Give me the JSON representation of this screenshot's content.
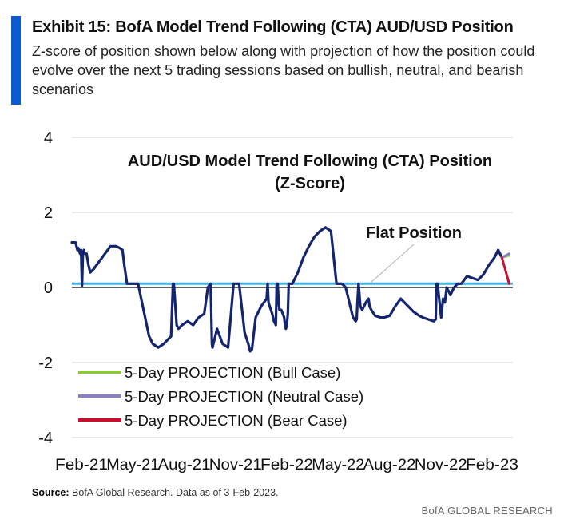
{
  "header": {
    "title": "Exhibit 15: BofA Model Trend Following (CTA) AUD/USD Position",
    "subtitle": "Z-score of position shown below along with projection of how the position could evolve over the next 5 trading sessions based on bullish, neutral, and bearish scenarios"
  },
  "footer": {
    "source_label": "Source:",
    "source_text": "BofA Global Research.  Data as of 3-Feb-2023.",
    "brand": "BofA GLOBAL RESEARCH"
  },
  "colors": {
    "accent": "#0a5bd1",
    "series_main": "#13256e",
    "flat_line": "#41b6e6",
    "bull": "#8dc63f",
    "neutral": "#8a7fc0",
    "bear": "#c8102e"
  },
  "chart_data": {
    "type": "line",
    "title_line1": "AUD/USD Model Trend Following (CTA) Position",
    "title_line2": "(Z-Score)",
    "ylim": [
      -4,
      4
    ],
    "yticks": [
      4,
      2,
      0,
      -2,
      -4
    ],
    "xlabels": [
      "Feb-21",
      "May-21",
      "Aug-21",
      "Nov-21",
      "Feb-22",
      "May-22",
      "Aug-22",
      "Nov-22",
      "Feb-23"
    ],
    "xlim": [
      0,
      24
    ],
    "grid": false,
    "flat_position": {
      "label": "Flat Position",
      "value": 0.1
    },
    "legend": [
      {
        "label": "5-Day PROJECTION (Bull Case)",
        "color_key": "bull"
      },
      {
        "label": "5-Day PROJECTION (Neutral Case)",
        "color_key": "neutral"
      },
      {
        "label": "5-Day PROJECTION (Bear Case)",
        "color_key": "bear"
      }
    ],
    "series": [
      {
        "x": [
          0,
          0.2,
          0.3,
          0.35,
          0.45,
          0.5,
          0.55,
          0.6,
          0.65,
          0.7,
          0.8,
          0.9,
          1.0,
          1.2,
          1.5,
          1.8,
          2.1,
          2.4,
          2.6,
          2.75,
          2.85,
          3.0,
          3.3,
          3.6,
          3.9,
          4.2,
          4.4,
          4.7,
          5.0,
          5.2,
          5.4,
          5.5,
          5.55,
          5.7,
          5.8,
          6.0,
          6.3,
          6.6,
          6.9,
          7.2,
          7.4,
          7.55,
          7.58,
          7.62,
          7.65,
          7.9,
          8.2,
          8.5,
          8.8,
          9.1,
          9.4,
          9.6,
          9.65,
          9.7,
          9.8,
          10.0,
          10.3,
          10.6,
          10.65,
          10.7,
          10.9,
          11.0,
          11.1,
          11.15,
          11.2,
          11.25,
          11.3,
          11.4,
          11.55,
          11.6,
          11.65,
          11.7,
          11.75,
          11.8,
          12.0,
          12.3,
          12.6,
          12.9,
          13.2,
          13.5,
          13.8,
          14.1,
          14.4,
          14.7,
          14.9,
          15.1,
          15.3,
          15.45,
          15.5,
          15.55,
          15.6,
          15.7,
          15.8,
          16.0,
          16.15,
          16.2,
          16.3,
          16.5,
          16.8,
          17.0,
          17.3,
          17.6,
          17.9,
          18.0,
          18.3,
          18.6,
          18.9,
          19.1,
          19.4,
          19.7,
          19.8,
          19.85,
          19.9,
          20.1,
          20.2,
          20.3,
          20.4,
          20.6,
          20.8,
          21.0,
          21.2,
          21.5,
          21.8,
          22.1,
          22.4,
          22.7,
          23.0,
          23.2,
          23.4
        ],
        "y": [
          1.2,
          1.2,
          1.0,
          1.05,
          0.9,
          1.0,
          0.05,
          0.9,
          1.0,
          0.9,
          0.9,
          0.6,
          0.4,
          0.5,
          0.7,
          0.9,
          1.1,
          1.1,
          1.05,
          1.0,
          0.6,
          0.1,
          0.1,
          0.1,
          -0.6,
          -1.3,
          -1.5,
          -1.6,
          -1.5,
          -1.4,
          -1.3,
          0.1,
          0.1,
          -1.0,
          -1.1,
          -1.0,
          -0.9,
          -1.0,
          -0.8,
          -0.7,
          0.0,
          0.1,
          -0.5,
          -1.5,
          -1.6,
          -1.1,
          -1.5,
          -1.6,
          0.1,
          0.1,
          -1.2,
          -1.5,
          -1.6,
          -1.7,
          -1.65,
          -0.8,
          -0.5,
          -0.3,
          0.1,
          -0.4,
          -0.7,
          -0.9,
          -1.0,
          0.1,
          0.1,
          -0.4,
          -0.6,
          -0.6,
          -0.8,
          -1.0,
          -1.1,
          -1.0,
          -0.7,
          0.1,
          0.1,
          0.4,
          0.8,
          1.1,
          1.35,
          1.5,
          1.6,
          1.5,
          0.1,
          0.1,
          0.0,
          -0.4,
          -0.8,
          -0.9,
          -0.85,
          -0.3,
          0.1,
          -0.5,
          -0.6,
          -0.4,
          -0.3,
          -0.5,
          -0.6,
          -0.75,
          -0.8,
          -0.8,
          -0.75,
          -0.5,
          -0.3,
          -0.35,
          -0.5,
          -0.65,
          -0.75,
          -0.8,
          -0.85,
          -0.9,
          -0.85,
          0.1,
          0.1,
          -0.8,
          -0.3,
          -0.4,
          0.0,
          -0.2,
          0.0,
          0.1,
          0.1,
          0.3,
          0.25,
          0.2,
          0.35,
          0.6,
          0.8,
          1.0,
          0.8
        ]
      },
      {
        "name": "5-Day PROJECTION (Bull Case)",
        "color_key": "bull",
        "x": [
          23.4,
          23.8
        ],
        "y": [
          0.8,
          0.85
        ]
      },
      {
        "name": "5-Day PROJECTION (Neutral Case)",
        "color_key": "neutral",
        "x": [
          23.4,
          23.8
        ],
        "y": [
          0.8,
          0.9
        ]
      },
      {
        "name": "5-Day PROJECTION (Bear Case)",
        "color_key": "bear",
        "x": [
          23.4,
          23.8
        ],
        "y": [
          0.8,
          0.1
        ]
      }
    ]
  }
}
